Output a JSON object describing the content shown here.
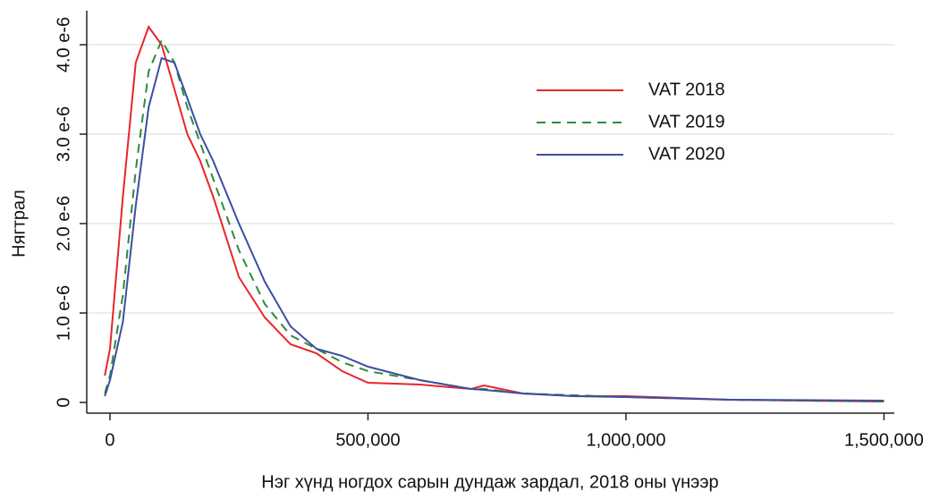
{
  "chart_data": {
    "type": "line",
    "y_label": "Нягтрал",
    "x_label": "Нэг хүнд ногдох сарын дундаж зардал, 2018 оны үнээр",
    "x": [
      -10000,
      0,
      25000,
      50000,
      75000,
      100000,
      125000,
      150000,
      175000,
      200000,
      250000,
      300000,
      350000,
      400000,
      450000,
      500000,
      600000,
      700000,
      725000,
      800000,
      900000,
      1000000,
      1200000,
      1500000
    ],
    "series": [
      {
        "name": "VAT 2018",
        "color": "#e8262b",
        "dash": "solid",
        "values": [
          3e-07,
          6e-07,
          2.3e-06,
          3.8e-06,
          4.2e-06,
          4e-06,
          3.5e-06,
          3e-06,
          2.7e-06,
          2.3e-06,
          1.4e-06,
          9.5e-07,
          6.5e-07,
          5.5e-07,
          3.5e-07,
          2.2e-07,
          2e-07,
          1.5e-07,
          1.9e-07,
          1e-07,
          7e-08,
          7e-08,
          3e-08,
          1e-08
        ]
      },
      {
        "name": "VAT 2019",
        "color": "#2e8b3a",
        "dash": "dashed",
        "values": [
          1e-07,
          3e-07,
          1.2e-06,
          2.6e-06,
          3.7e-06,
          4.05e-06,
          3.8e-06,
          3.3e-06,
          2.9e-06,
          2.5e-06,
          1.7e-06,
          1.1e-06,
          7.5e-07,
          6e-07,
          4.5e-07,
          3.5e-07,
          2.5e-07,
          1.5e-07,
          1.5e-07,
          1e-07,
          8e-08,
          6e-08,
          3e-08,
          1e-08
        ]
      },
      {
        "name": "VAT 2020",
        "color": "#3a4fa0",
        "dash": "solid",
        "values": [
          7e-08,
          2.5e-07,
          9e-07,
          2.2e-06,
          3.3e-06,
          3.85e-06,
          3.8e-06,
          3.4e-06,
          3e-06,
          2.7e-06,
          2e-06,
          1.35e-06,
          8.5e-07,
          6e-07,
          5.2e-07,
          4e-07,
          2.5e-07,
          1.5e-07,
          1.4e-07,
          1e-07,
          7e-08,
          6e-08,
          3e-08,
          2e-08
        ]
      }
    ],
    "xlim": [
      -45000,
      1520000
    ],
    "ylim": [
      -1.2e-07,
      4.38e-06
    ],
    "xticks": [
      0,
      {
        "value": 500000,
        "label": "500,000"
      },
      {
        "value": 1000000,
        "label": "1,000,000"
      },
      {
        "value": 1500000,
        "label": "1,500,000"
      }
    ],
    "yticks": [
      0,
      {
        "value": 1e-06,
        "label": "1.0 e-6"
      },
      {
        "value": 2e-06,
        "label": "2.0 e-6"
      },
      {
        "value": 3e-06,
        "label": "3.0 e-6"
      },
      {
        "value": 4e-06,
        "label": "4.0 e-6"
      }
    ],
    "grid": true
  }
}
